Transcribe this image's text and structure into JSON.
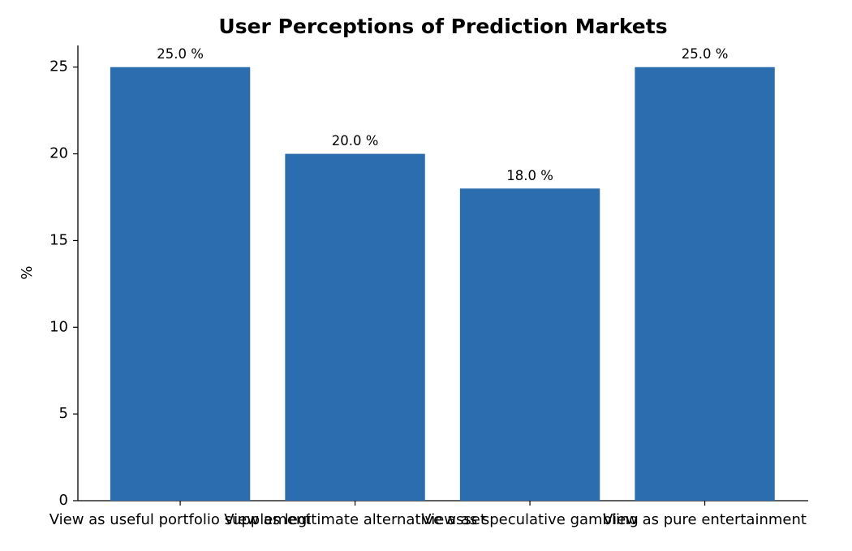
{
  "chart_data": {
    "type": "bar",
    "title": "User Perceptions of Prediction Markets",
    "y_label": "%",
    "categories": [
      "View as useful portfolio supplement",
      "View as legitimate alternative asset",
      "View as speculative gambling",
      "View as pure entertainment"
    ],
    "values": [
      25,
      20,
      18,
      25
    ],
    "value_labels": [
      "25.0 %",
      "20.0 %",
      "18.0 %",
      "25.0 %"
    ],
    "color": "#2c6db0",
    "ylim": [
      0,
      26.25
    ],
    "yticks": [
      0,
      5,
      10,
      15,
      20,
      25
    ],
    "grid": false
  }
}
